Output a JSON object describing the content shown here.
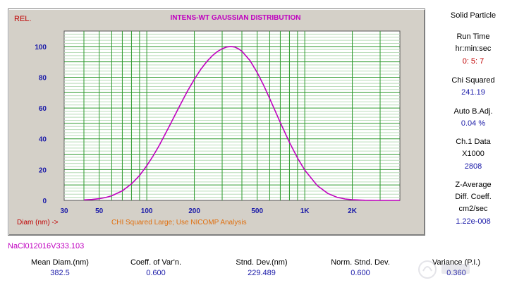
{
  "chart_data": {
    "type": "line",
    "title": "INTENS-WT GAUSSIAN DISTRIBUTION",
    "ylabel": "REL.",
    "xlabel": "Diam (nm) ->",
    "x_scale": "log",
    "xlim": [
      30,
      4000
    ],
    "ylim": [
      0,
      110
    ],
    "x_tick_values": [
      30,
      50,
      100,
      200,
      500,
      1000,
      2000
    ],
    "x_tick_labels": [
      "30",
      "50",
      "100",
      "200",
      "500",
      "1K",
      "2K"
    ],
    "y_ticks": [
      0,
      20,
      40,
      60,
      80,
      100
    ],
    "grid": true,
    "annotation": "CHI Squared Large; Use NICOMP Analysis",
    "series": [
      {
        "name": "Intensity-weighted Gaussian",
        "color": "#c000c0",
        "x": [
          40,
          45,
          50,
          55,
          60,
          70,
          80,
          90,
          100,
          110,
          120,
          140,
          160,
          180,
          200,
          220,
          240,
          260,
          280,
          300,
          320,
          340,
          360,
          380,
          400,
          450,
          500,
          550,
          600,
          700,
          800,
          900,
          1000,
          1200,
          1400,
          1600,
          1800,
          2000,
          2400,
          2800,
          3200,
          3600,
          4000
        ],
        "y": [
          0.3,
          0.6,
          1.1,
          1.9,
          3.0,
          6.2,
          10.7,
          16.2,
          22.5,
          29.1,
          35.8,
          48.9,
          60.6,
          70.6,
          78.7,
          85.2,
          90.2,
          94.0,
          96.7,
          98.5,
          99.6,
          100,
          99.6,
          98.5,
          96.9,
          90.8,
          83.0,
          74.6,
          66.2,
          50.6,
          37.7,
          27.5,
          19.7,
          9.6,
          4.5,
          2.0,
          0.9,
          0.4,
          0.1,
          0.0,
          0.0,
          0.0,
          0.0
        ]
      }
    ]
  },
  "side_panel": {
    "mode": "Solid Particle",
    "run_time_label": "Run Time",
    "run_time_units": "hr:min:sec",
    "run_time_value": "0: 5: 7",
    "chi_squared_label": "Chi Squared",
    "chi_squared_value": "241.19",
    "auto_badj_label": "Auto B.Adj.",
    "auto_badj_value": "0.04 %",
    "ch1_label": "Ch.1 Data",
    "ch1_scale": "X1000",
    "ch1_value": "2808",
    "z_avg_label": "Z-Average",
    "z_avg_sub": "Diff. Coeff.",
    "z_avg_units": "cm2/sec",
    "z_avg_value": "1.22e-008"
  },
  "sample_name": "NaCl012016V333.103",
  "stats": [
    {
      "label": "Mean Diam.(nm)",
      "value": "382.5"
    },
    {
      "label": "Coeff. of Var'n.",
      "value": "0.600"
    },
    {
      "label": "Stnd. Dev.(nm)",
      "value": "229.489"
    },
    {
      "label": "Norm. Stnd. Dev.",
      "value": "0.600"
    },
    {
      "label": "Variance (P.I.)",
      "value": "0.360"
    }
  ],
  "colors": {
    "panel_bg": "#d4d0c8",
    "plot_bg": "#ffffff",
    "grid_major": "#2e9a2e",
    "grid_minor": "#b8dcb8",
    "curve": "#c000c0",
    "tick_label": "#1a1aa8",
    "red_label": "#c00000",
    "annotation": "#e07010"
  }
}
